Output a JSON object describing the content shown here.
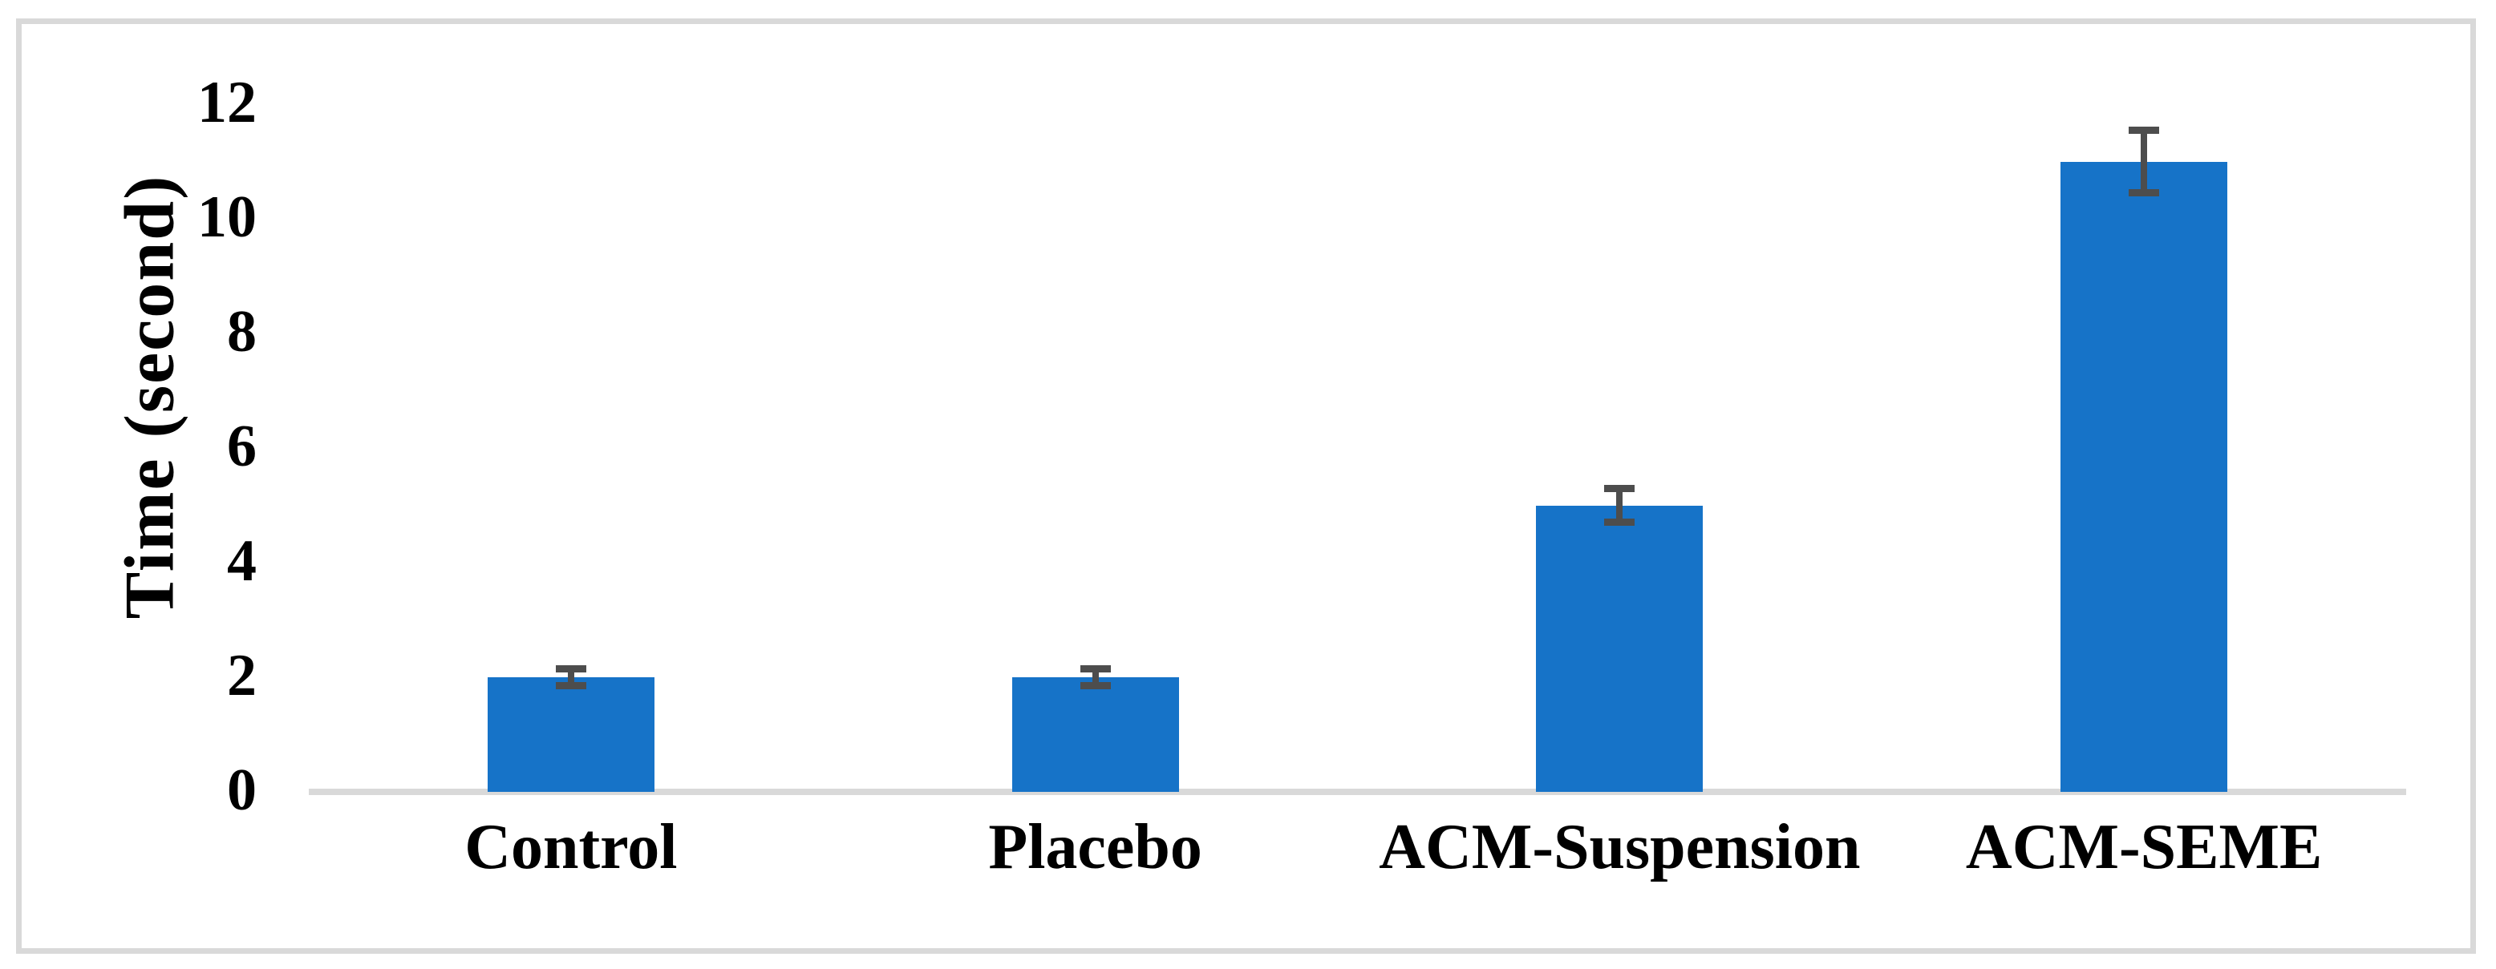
{
  "chart_data": {
    "type": "bar",
    "title": "",
    "categories": [
      "Control",
      "Placebo",
      "ACM-Suspension",
      "ACM-SEME"
    ],
    "values": [
      2,
      2,
      5,
      11
    ],
    "error_bars": [
      0.15,
      0.15,
      0.3,
      0.55
    ],
    "xlabel": "",
    "ylabel": "Time (second)",
    "ylim": [
      0,
      12
    ],
    "yticks": [
      0,
      2,
      4,
      6,
      8,
      10,
      12
    ],
    "grid": false,
    "legend": false,
    "bar_color": "#1673c8",
    "error_bar_color": "#4d4d4d",
    "axis_line_color": "#d9d9d9",
    "frame_color": "#d9d9d9",
    "text_color": "#000000"
  }
}
